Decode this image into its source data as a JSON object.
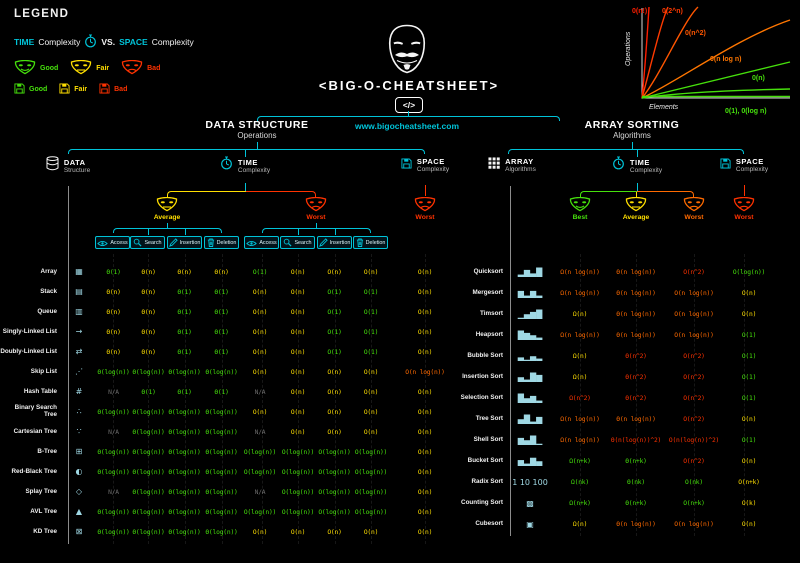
{
  "colors": {
    "cyan": "#00c3d8",
    "green": "#46e00c",
    "yellow": "#ffdf00",
    "orange": "#ff6a00",
    "red": "#ff3200",
    "gray": "#6a6a6a",
    "white": "#f5f5f5"
  },
  "legend": {
    "title": "LEGEND",
    "time_word": "TIME",
    "time_rest": "Complexity",
    "vs": "VS.",
    "space_word": "SPACE",
    "space_rest": "Complexity",
    "masks": [
      {
        "label": "Good"
      },
      {
        "label": "Fair"
      },
      {
        "label": "Bad"
      }
    ],
    "disks": [
      {
        "label": "Good"
      },
      {
        "label": "Fair"
      },
      {
        "label": "Bad"
      }
    ]
  },
  "header": {
    "title": "<BIG-O-CHEATSHEET>",
    "badge": "</>",
    "site": "www.bigocheatsheet.com"
  },
  "growth_chart": {
    "type": "line",
    "ylabel": "Operations",
    "xlabel": "Elements",
    "series": [
      {
        "label": "0(n!)",
        "color": "#ff1e00"
      },
      {
        "label": "0(2^n)",
        "color": "#ff3a00"
      },
      {
        "label": "0(n^2)",
        "color": "#ff5600"
      },
      {
        "label": "0(n log n)",
        "color": "#ff7600"
      },
      {
        "label": "0(n)",
        "color": "#46e00c"
      },
      {
        "label": "0(1), 0(log n)",
        "color": "#46e00c"
      }
    ]
  },
  "sections": {
    "left_title": "DATA STRUCTURE",
    "left_subtitle": "Operations",
    "right_title": "ARRAY SORTING",
    "right_subtitle": "Algorithms"
  },
  "left_table": {
    "header": {
      "col1": {
        "title": "DATA",
        "sub": "Structure"
      },
      "col2": {
        "title": "TIME",
        "sub": "Complexity"
      },
      "col3": {
        "title": "SPACE",
        "sub": "Complexity"
      }
    },
    "groups": [
      {
        "label": "Average"
      },
      {
        "label": "Worst"
      }
    ],
    "space_group": {
      "label": "Worst"
    },
    "ops": [
      "Access",
      "Search",
      "Insertion",
      "Deletion"
    ],
    "rows": [
      {
        "name": "Array",
        "icon": "▦",
        "icon_name": "array-icon",
        "cells": [
          [
            "Θ(1)",
            "g"
          ],
          [
            "Θ(n)",
            "y"
          ],
          [
            "Θ(n)",
            "y"
          ],
          [
            "Θ(n)",
            "y"
          ],
          [
            "O(1)",
            "g"
          ],
          [
            "O(n)",
            "y"
          ],
          [
            "O(n)",
            "y"
          ],
          [
            "O(n)",
            "y"
          ],
          [
            "O(n)",
            "y"
          ]
        ]
      },
      {
        "name": "Stack",
        "icon": "▤",
        "icon_name": "stack-icon",
        "cells": [
          [
            "Θ(n)",
            "y"
          ],
          [
            "Θ(n)",
            "y"
          ],
          [
            "Θ(1)",
            "g"
          ],
          [
            "Θ(1)",
            "g"
          ],
          [
            "O(n)",
            "y"
          ],
          [
            "O(n)",
            "y"
          ],
          [
            "O(1)",
            "g"
          ],
          [
            "O(1)",
            "g"
          ],
          [
            "O(n)",
            "y"
          ]
        ]
      },
      {
        "name": "Queue",
        "icon": "▥",
        "icon_name": "queue-icon",
        "cells": [
          [
            "Θ(n)",
            "y"
          ],
          [
            "Θ(n)",
            "y"
          ],
          [
            "Θ(1)",
            "g"
          ],
          [
            "Θ(1)",
            "g"
          ],
          [
            "O(n)",
            "y"
          ],
          [
            "O(n)",
            "y"
          ],
          [
            "O(1)",
            "g"
          ],
          [
            "O(1)",
            "g"
          ],
          [
            "O(n)",
            "y"
          ]
        ]
      },
      {
        "name": "Singly-Linked List",
        "icon": "→",
        "icon_name": "singly-linked-list-icon",
        "cells": [
          [
            "Θ(n)",
            "y"
          ],
          [
            "Θ(n)",
            "y"
          ],
          [
            "Θ(1)",
            "g"
          ],
          [
            "Θ(1)",
            "g"
          ],
          [
            "O(n)",
            "y"
          ],
          [
            "O(n)",
            "y"
          ],
          [
            "O(1)",
            "g"
          ],
          [
            "O(1)",
            "g"
          ],
          [
            "O(n)",
            "y"
          ]
        ]
      },
      {
        "name": "Doubly-Linked List",
        "icon": "⇄",
        "icon_name": "doubly-linked-list-icon",
        "cells": [
          [
            "Θ(n)",
            "y"
          ],
          [
            "Θ(n)",
            "y"
          ],
          [
            "Θ(1)",
            "g"
          ],
          [
            "Θ(1)",
            "g"
          ],
          [
            "O(n)",
            "y"
          ],
          [
            "O(n)",
            "y"
          ],
          [
            "O(1)",
            "g"
          ],
          [
            "O(1)",
            "g"
          ],
          [
            "O(n)",
            "y"
          ]
        ]
      },
      {
        "name": "Skip List",
        "icon": "⋰",
        "icon_name": "skip-list-icon",
        "cells": [
          [
            "Θ(log(n))",
            "g"
          ],
          [
            "Θ(log(n))",
            "g"
          ],
          [
            "Θ(log(n))",
            "g"
          ],
          [
            "Θ(log(n))",
            "g"
          ],
          [
            "O(n)",
            "y"
          ],
          [
            "O(n)",
            "y"
          ],
          [
            "O(n)",
            "y"
          ],
          [
            "O(n)",
            "y"
          ],
          [
            "O(n log(n))",
            "o"
          ]
        ]
      },
      {
        "name": "Hash Table",
        "icon": "#",
        "icon_name": "hash-table-icon",
        "cells": [
          [
            "N/A",
            "n"
          ],
          [
            "Θ(1)",
            "g"
          ],
          [
            "Θ(1)",
            "g"
          ],
          [
            "Θ(1)",
            "g"
          ],
          [
            "N/A",
            "n"
          ],
          [
            "O(n)",
            "y"
          ],
          [
            "O(n)",
            "y"
          ],
          [
            "O(n)",
            "y"
          ],
          [
            "O(n)",
            "y"
          ]
        ]
      },
      {
        "name": "Binary Search Tree",
        "icon": "∴",
        "icon_name": "binary-search-tree-icon",
        "cells": [
          [
            "Θ(log(n))",
            "g"
          ],
          [
            "Θ(log(n))",
            "g"
          ],
          [
            "Θ(log(n))",
            "g"
          ],
          [
            "Θ(log(n))",
            "g"
          ],
          [
            "O(n)",
            "y"
          ],
          [
            "O(n)",
            "y"
          ],
          [
            "O(n)",
            "y"
          ],
          [
            "O(n)",
            "y"
          ],
          [
            "O(n)",
            "y"
          ]
        ]
      },
      {
        "name": "Cartesian Tree",
        "icon": "∵",
        "icon_name": "cartesian-tree-icon",
        "cells": [
          [
            "N/A",
            "n"
          ],
          [
            "Θ(log(n))",
            "g"
          ],
          [
            "Θ(log(n))",
            "g"
          ],
          [
            "Θ(log(n))",
            "g"
          ],
          [
            "N/A",
            "n"
          ],
          [
            "O(n)",
            "y"
          ],
          [
            "O(n)",
            "y"
          ],
          [
            "O(n)",
            "y"
          ],
          [
            "O(n)",
            "y"
          ]
        ]
      },
      {
        "name": "B-Tree",
        "icon": "⊞",
        "icon_name": "b-tree-icon",
        "cells": [
          [
            "Θ(log(n))",
            "g"
          ],
          [
            "Θ(log(n))",
            "g"
          ],
          [
            "Θ(log(n))",
            "g"
          ],
          [
            "Θ(log(n))",
            "g"
          ],
          [
            "O(log(n))",
            "g"
          ],
          [
            "O(log(n))",
            "g"
          ],
          [
            "O(log(n))",
            "g"
          ],
          [
            "O(log(n))",
            "g"
          ],
          [
            "O(n)",
            "y"
          ]
        ]
      },
      {
        "name": "Red-Black Tree",
        "icon": "◐",
        "icon_name": "red-black-tree-icon",
        "cells": [
          [
            "Θ(log(n))",
            "g"
          ],
          [
            "Θ(log(n))",
            "g"
          ],
          [
            "Θ(log(n))",
            "g"
          ],
          [
            "Θ(log(n))",
            "g"
          ],
          [
            "O(log(n))",
            "g"
          ],
          [
            "O(log(n))",
            "g"
          ],
          [
            "O(log(n))",
            "g"
          ],
          [
            "O(log(n))",
            "g"
          ],
          [
            "O(n)",
            "y"
          ]
        ]
      },
      {
        "name": "Splay Tree",
        "icon": "◇",
        "icon_name": "splay-tree-icon",
        "cells": [
          [
            "N/A",
            "n"
          ],
          [
            "Θ(log(n))",
            "g"
          ],
          [
            "Θ(log(n))",
            "g"
          ],
          [
            "Θ(log(n))",
            "g"
          ],
          [
            "N/A",
            "n"
          ],
          [
            "O(log(n))",
            "g"
          ],
          [
            "O(log(n))",
            "g"
          ],
          [
            "O(log(n))",
            "g"
          ],
          [
            "O(n)",
            "y"
          ]
        ]
      },
      {
        "name": "AVL Tree",
        "icon": "▲",
        "icon_name": "avl-tree-icon",
        "cells": [
          [
            "Θ(log(n))",
            "g"
          ],
          [
            "Θ(log(n))",
            "g"
          ],
          [
            "Θ(log(n))",
            "g"
          ],
          [
            "Θ(log(n))",
            "g"
          ],
          [
            "O(log(n))",
            "g"
          ],
          [
            "O(log(n))",
            "g"
          ],
          [
            "O(log(n))",
            "g"
          ],
          [
            "O(log(n))",
            "g"
          ],
          [
            "O(n)",
            "y"
          ]
        ]
      },
      {
        "name": "KD Tree",
        "icon": "⊠",
        "icon_name": "kd-tree-icon",
        "cells": [
          [
            "Θ(log(n))",
            "g"
          ],
          [
            "Θ(log(n))",
            "g"
          ],
          [
            "Θ(log(n))",
            "g"
          ],
          [
            "Θ(log(n))",
            "g"
          ],
          [
            "O(n)",
            "y"
          ],
          [
            "O(n)",
            "y"
          ],
          [
            "O(n)",
            "y"
          ],
          [
            "O(n)",
            "y"
          ],
          [
            "O(n)",
            "y"
          ]
        ]
      }
    ]
  },
  "right_table": {
    "header": {
      "col1": {
        "title": "ARRAY",
        "sub": "Algorithms"
      },
      "col2": {
        "title": "TIME",
        "sub": "Complexity"
      },
      "col3": {
        "title": "SPACE",
        "sub": "Complexity"
      }
    },
    "groups": [
      {
        "label": "Best"
      },
      {
        "label": "Average"
      },
      {
        "label": "Worst"
      }
    ],
    "space_group": {
      "label": "Worst"
    },
    "rows": [
      {
        "name": "Quicksort",
        "icon": "▂▆▃█",
        "icon_name": "quicksort-icon",
        "cells": [
          [
            "Ω(n log(n))",
            "o"
          ],
          [
            "Θ(n log(n))",
            "o"
          ],
          [
            "O(n^2)",
            "r"
          ],
          [
            "O(log(n))",
            "g"
          ]
        ]
      },
      {
        "name": "Mergesort",
        "icon": "▆▂▆▂",
        "icon_name": "mergesort-icon",
        "cells": [
          [
            "Ω(n log(n))",
            "o"
          ],
          [
            "Θ(n log(n))",
            "o"
          ],
          [
            "O(n log(n))",
            "o"
          ],
          [
            "O(n)",
            "y"
          ]
        ]
      },
      {
        "name": "Timsort",
        "icon": "▁▄▆█",
        "icon_name": "timsort-icon",
        "cells": [
          [
            "Ω(n)",
            "y"
          ],
          [
            "Θ(n log(n))",
            "o"
          ],
          [
            "O(n log(n))",
            "o"
          ],
          [
            "O(n)",
            "y"
          ]
        ]
      },
      {
        "name": "Heapsort",
        "icon": "█▆▄▂",
        "icon_name": "heapsort-icon",
        "cells": [
          [
            "Ω(n log(n))",
            "o"
          ],
          [
            "Θ(n log(n))",
            "o"
          ],
          [
            "O(n log(n))",
            "o"
          ],
          [
            "O(1)",
            "g"
          ]
        ]
      },
      {
        "name": "Bubble Sort",
        "icon": "▃▁▄▂",
        "icon_name": "bubble-sort-icon",
        "cells": [
          [
            "Ω(n)",
            "y"
          ],
          [
            "Θ(n^2)",
            "r"
          ],
          [
            "O(n^2)",
            "r"
          ],
          [
            "O(1)",
            "g"
          ]
        ]
      },
      {
        "name": "Insertion Sort",
        "icon": "▄▂█▆",
        "icon_name": "insertion-sort-icon",
        "cells": [
          [
            "Ω(n)",
            "y"
          ],
          [
            "Θ(n^2)",
            "r"
          ],
          [
            "O(n^2)",
            "r"
          ],
          [
            "O(1)",
            "g"
          ]
        ]
      },
      {
        "name": "Selection Sort",
        "icon": "█▄▆▂",
        "icon_name": "selection-sort-icon",
        "cells": [
          [
            "Ω(n^2)",
            "r"
          ],
          [
            "Θ(n^2)",
            "r"
          ],
          [
            "O(n^2)",
            "r"
          ],
          [
            "O(1)",
            "g"
          ]
        ]
      },
      {
        "name": "Tree Sort",
        "icon": "▄█▂▆",
        "icon_name": "tree-sort-icon",
        "cells": [
          [
            "Ω(n log(n))",
            "o"
          ],
          [
            "Θ(n log(n))",
            "o"
          ],
          [
            "O(n^2)",
            "r"
          ],
          [
            "O(n)",
            "y"
          ]
        ]
      },
      {
        "name": "Shell Sort",
        "icon": "▆▄█▁",
        "icon_name": "shell-sort-icon",
        "cells": [
          [
            "Ω(n log(n))",
            "o"
          ],
          [
            "Θ(n(log(n))^2)",
            "r"
          ],
          [
            "O(n(log(n))^2)",
            "r"
          ],
          [
            "O(1)",
            "g"
          ]
        ]
      },
      {
        "name": "Bucket Sort",
        "icon": "▅▂▇▄",
        "icon_name": "bucket-sort-icon",
        "cells": [
          [
            "Ω(n+k)",
            "g"
          ],
          [
            "Θ(n+k)",
            "g"
          ],
          [
            "O(n^2)",
            "r"
          ],
          [
            "O(n)",
            "y"
          ]
        ]
      },
      {
        "name": "Radix Sort",
        "icon": "1 10 100",
        "icon_name": "radix-sort-icon",
        "cells": [
          [
            "Ω(nk)",
            "g"
          ],
          [
            "Θ(nk)",
            "g"
          ],
          [
            "O(nk)",
            "g"
          ],
          [
            "O(n+k)",
            "y"
          ]
        ]
      },
      {
        "name": "Counting Sort",
        "icon": "▩",
        "icon_name": "counting-sort-icon",
        "cells": [
          [
            "Ω(n+k)",
            "g"
          ],
          [
            "Θ(n+k)",
            "g"
          ],
          [
            "O(n+k)",
            "g"
          ],
          [
            "O(k)",
            "y"
          ]
        ]
      },
      {
        "name": "Cubesort",
        "icon": "▣",
        "icon_name": "cubesort-icon",
        "cells": [
          [
            "Ω(n)",
            "y"
          ],
          [
            "Θ(n log(n))",
            "o"
          ],
          [
            "O(n log(n))",
            "o"
          ],
          [
            "O(n)",
            "y"
          ]
        ]
      }
    ]
  }
}
